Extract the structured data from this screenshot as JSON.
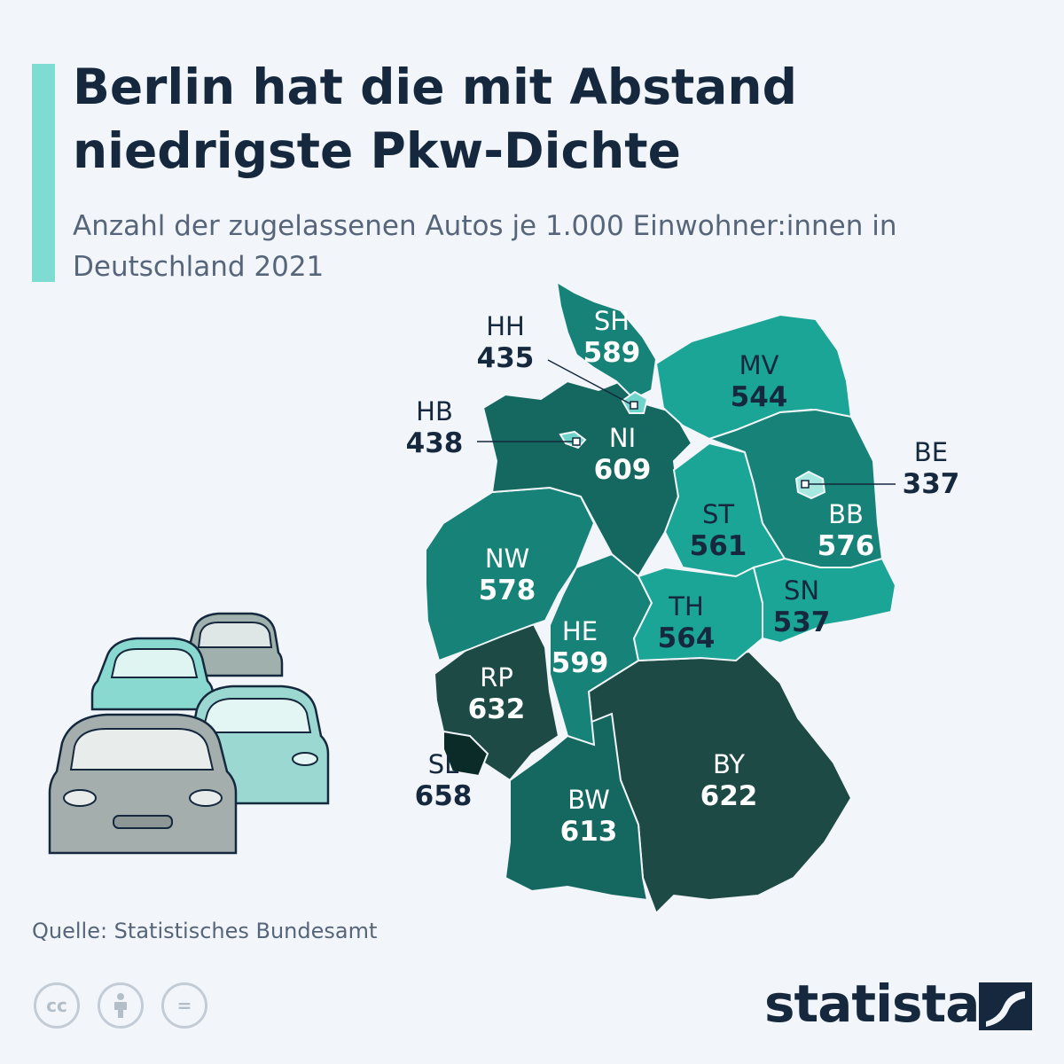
{
  "header": {
    "title": "Berlin hat die mit Abstand niedrigste Pkw-Dichte",
    "subtitle": "Anzahl der zugelassenen Autos je 1.000 Einwohner:innen in Deutschland 2021"
  },
  "states": [
    {
      "code": "SH",
      "value": "589",
      "color": "#178277"
    },
    {
      "code": "HH",
      "value": "435",
      "color": "#6fd4c9"
    },
    {
      "code": "MV",
      "value": "544",
      "color": "#1ba596"
    },
    {
      "code": "HB",
      "value": "438",
      "color": "#6fd4c9"
    },
    {
      "code": "NI",
      "value": "609",
      "color": "#14685f"
    },
    {
      "code": "BE",
      "value": "337",
      "color": "#a7e8e1"
    },
    {
      "code": "BB",
      "value": "576",
      "color": "#178277"
    },
    {
      "code": "ST",
      "value": "561",
      "color": "#1ba596"
    },
    {
      "code": "NW",
      "value": "578",
      "color": "#178277"
    },
    {
      "code": "SN",
      "value": "537",
      "color": "#1ba596"
    },
    {
      "code": "TH",
      "value": "564",
      "color": "#1ba596"
    },
    {
      "code": "HE",
      "value": "599",
      "color": "#178277"
    },
    {
      "code": "RP",
      "value": "632",
      "color": "#1d4a45"
    },
    {
      "code": "SL",
      "value": "658",
      "color": "#0a2b27"
    },
    {
      "code": "BY",
      "value": "622",
      "color": "#1d4a45"
    },
    {
      "code": "BW",
      "value": "613",
      "color": "#14685f"
    }
  ],
  "footer": {
    "source": "Quelle: Statistisches Bundesamt",
    "brand": "statista",
    "license_icons": [
      "cc-icon",
      "attribution-icon",
      "no-derivatives-icon"
    ],
    "license_glyphs": [
      "cc",
      "="
    ]
  }
}
